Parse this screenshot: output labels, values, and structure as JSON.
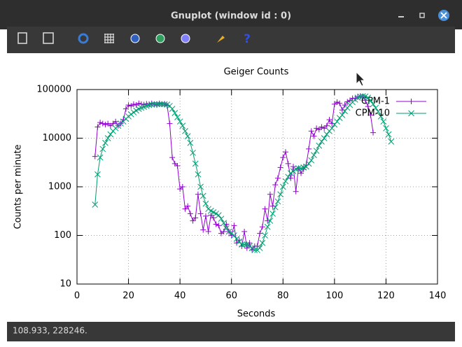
{
  "window": {
    "title": "Gnuplot (window id : 0)",
    "status": "108.933, 228246."
  },
  "chart_data": {
    "type": "line",
    "title": "Geiger Counts",
    "x_label": "Seconds",
    "y_label": "Counts per minute",
    "ylog": true,
    "grid": true,
    "legend": "top-right",
    "xlim": [
      0,
      140
    ],
    "xticks": [
      0,
      20,
      40,
      60,
      80,
      100,
      120,
      140
    ],
    "ylim": [
      10,
      100000
    ],
    "yticks": [
      10,
      100,
      1000,
      10000,
      100000
    ],
    "x": [
      7,
      8,
      9,
      10,
      11,
      12,
      13,
      14,
      15,
      16,
      17,
      18,
      19,
      20,
      21,
      22,
      23,
      24,
      25,
      26,
      27,
      28,
      29,
      30,
      31,
      32,
      33,
      34,
      35,
      36,
      37,
      38,
      39,
      40,
      41,
      42,
      43,
      44,
      45,
      46,
      47,
      48,
      49,
      50,
      51,
      52,
      53,
      54,
      55,
      56,
      57,
      58,
      59,
      60,
      61,
      62,
      63,
      64,
      65,
      66,
      67,
      68,
      69,
      70,
      71,
      72,
      73,
      74,
      75,
      76,
      77,
      78,
      79,
      80,
      81,
      82,
      83,
      84,
      85,
      86,
      87,
      88,
      89,
      90,
      91,
      92,
      93,
      94,
      95,
      96,
      97,
      98,
      99,
      100,
      101,
      102,
      103,
      104,
      105,
      106,
      107,
      108,
      109,
      110,
      111,
      112,
      113,
      114,
      115,
      116,
      117,
      118,
      119,
      120,
      121,
      122
    ],
    "series": [
      {
        "name": "CPM-1",
        "color": "#9400d3",
        "marker": "plus",
        "values": [
          4200,
          17000,
          21000,
          20000,
          19000,
          20000,
          18000,
          20000,
          22000,
          18000,
          20000,
          24000,
          40000,
          48000,
          46000,
          50000,
          48000,
          52000,
          50000,
          49000,
          51000,
          50000,
          52000,
          50000,
          48000,
          52000,
          50000,
          51000,
          47000,
          20000,
          4000,
          3000,
          2700,
          900,
          1000,
          350,
          400,
          280,
          200,
          230,
          700,
          280,
          130,
          250,
          120,
          260,
          230,
          170,
          160,
          110,
          120,
          170,
          120,
          100,
          160,
          70,
          80,
          60,
          120,
          55,
          70,
          50,
          60,
          60,
          110,
          150,
          350,
          200,
          700,
          400,
          1100,
          1500,
          2500,
          4000,
          5200,
          3000,
          1500,
          2600,
          800,
          2400,
          1900,
          2300,
          2800,
          6000,
          14000,
          11000,
          16000,
          15000,
          17000,
          16000,
          18000,
          24000,
          20000,
          50000,
          55000,
          52000,
          38000,
          48000,
          56000,
          60000,
          66000,
          65000,
          70000,
          72000,
          70000,
          60000,
          45000,
          30000,
          13000,
          null,
          null,
          null,
          null,
          null,
          null,
          null
        ]
      },
      {
        "name": "CPM-10",
        "color": "#009e73",
        "marker": "cross",
        "values": [
          430,
          1800,
          4000,
          6000,
          8000,
          10000,
          12000,
          14000,
          16000,
          18000,
          20000,
          22000,
          25000,
          28000,
          31000,
          34000,
          37000,
          40000,
          42000,
          44000,
          46000,
          48000,
          49000,
          50000,
          50000,
          50000,
          50000,
          50000,
          49000,
          46000,
          40000,
          33000,
          27000,
          22000,
          18000,
          14000,
          11000,
          8000,
          5000,
          3000,
          1800,
          1000,
          650,
          450,
          350,
          320,
          300,
          280,
          260,
          220,
          180,
          140,
          120,
          110,
          100,
          85,
          75,
          65,
          65,
          65,
          60,
          55,
          50,
          50,
          55,
          70,
          100,
          150,
          200,
          280,
          380,
          500,
          700,
          1000,
          1300,
          1600,
          1900,
          2100,
          2300,
          2400,
          2400,
          2500,
          2600,
          3000,
          3500,
          4500,
          5500,
          7000,
          8500,
          10000,
          12000,
          14000,
          16000,
          19000,
          22000,
          26000,
          30000,
          36000,
          42000,
          48000,
          55000,
          62000,
          68000,
          72000,
          73000,
          72000,
          68000,
          60000,
          50000,
          42000,
          35000,
          28000,
          22000,
          16000,
          12000,
          8500
        ]
      }
    ]
  }
}
